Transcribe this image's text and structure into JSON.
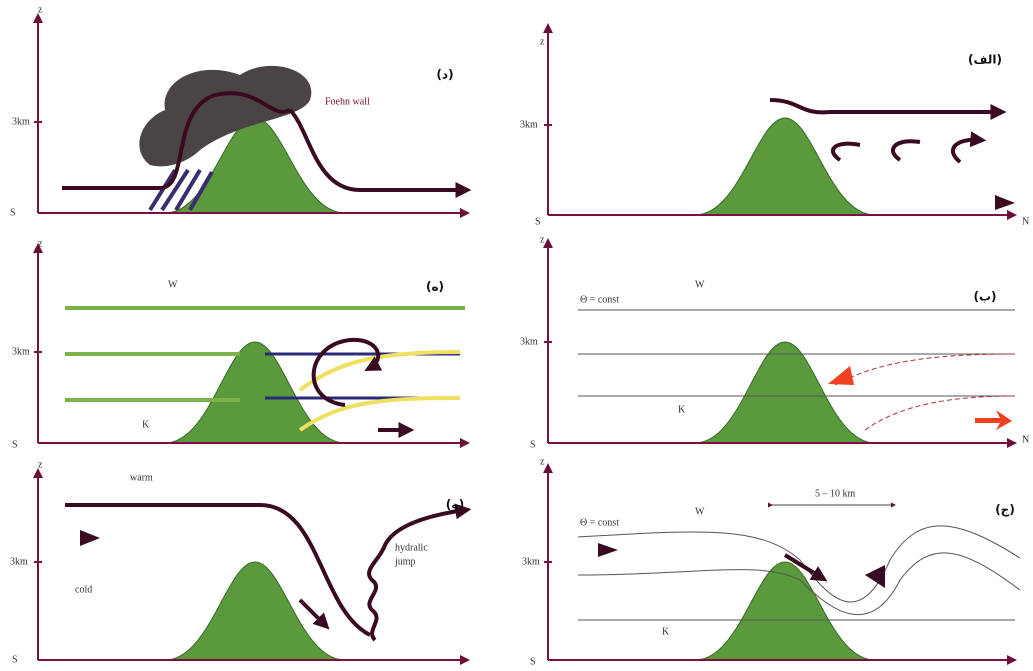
{
  "panels": [
    {
      "label": "(د)",
      "z": "z",
      "km": "3km",
      "s": "S",
      "note": "Foehn wall"
    },
    {
      "label": "(الف)",
      "z": "z",
      "km": "3km",
      "s": "S",
      "n": "N"
    },
    {
      "label": "(ه)",
      "z": "z",
      "w": "W",
      "km": "3km",
      "k": "K",
      "s": "S"
    },
    {
      "label": "(ب)",
      "z": "z",
      "w": "W",
      "theta": "Θ = const",
      "km": "3km",
      "k": "K",
      "s": "S",
      "n": "N"
    },
    {
      "label": "(و)",
      "z": "z",
      "warm": "warm",
      "km": "3km",
      "cold": "cold",
      "jump1": "hydralic",
      "jump2": "jump",
      "s": "S"
    },
    {
      "label": "(ج)",
      "z": "z",
      "dist": "5 – 10 km",
      "theta": "Θ = const",
      "w": "W",
      "km": "3km",
      "k": "K",
      "s": "S"
    }
  ]
}
